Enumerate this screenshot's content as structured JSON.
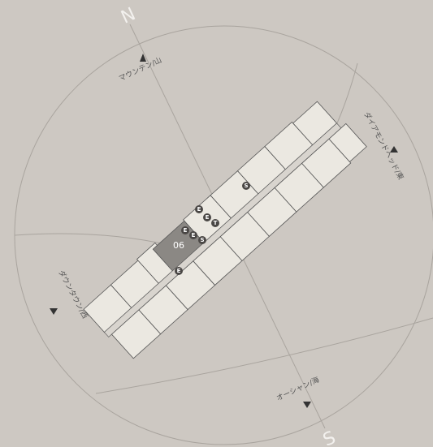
{
  "compass": {
    "north": "N",
    "south": "S"
  },
  "directions": {
    "mountain": "マウンテン/山",
    "diamond_head": "ダイアモンドヘッド/東",
    "downtown": "ダウンタウン/西",
    "ocean": "オーシャン/海"
  },
  "unit": "06",
  "icons": [
    "S",
    "E",
    "E",
    "E",
    "T",
    "E",
    "E",
    "S"
  ]
}
